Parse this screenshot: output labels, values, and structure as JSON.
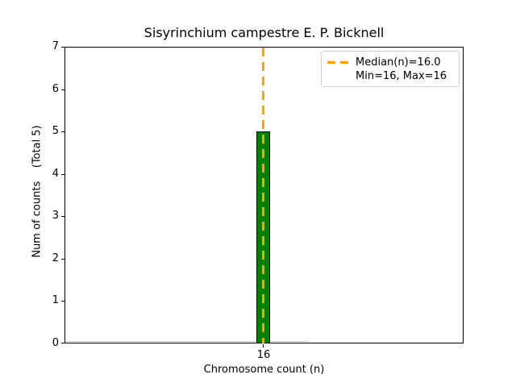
{
  "chart_data": {
    "type": "bar",
    "title": "Sisyrinchium campestre E. P. Bicknell",
    "categories": [
      "16"
    ],
    "values": [
      5
    ],
    "bar_color": "#008000",
    "bar_edge_color": "#000000",
    "xlabel": "Chromosome count (n)",
    "ylabel": "Num of counts    (Total 5)",
    "ylim": [
      0,
      7
    ],
    "yticks": [
      "0",
      "1",
      "2",
      "3",
      "4",
      "5",
      "6",
      "7"
    ],
    "xticks": [
      "16"
    ],
    "grid": false,
    "median_line": {
      "x": 16,
      "color": "#FFA500",
      "style": "dashed"
    },
    "stats": {
      "median": 16.0,
      "min": 16,
      "max": 16,
      "total": 5
    },
    "legend": {
      "position": "upper right",
      "entries": [
        {
          "label": "Median(n)=16.0",
          "swatch": "orange-dashed-line"
        },
        {
          "label": "Min=16, Max=16",
          "swatch": "none"
        }
      ]
    }
  }
}
